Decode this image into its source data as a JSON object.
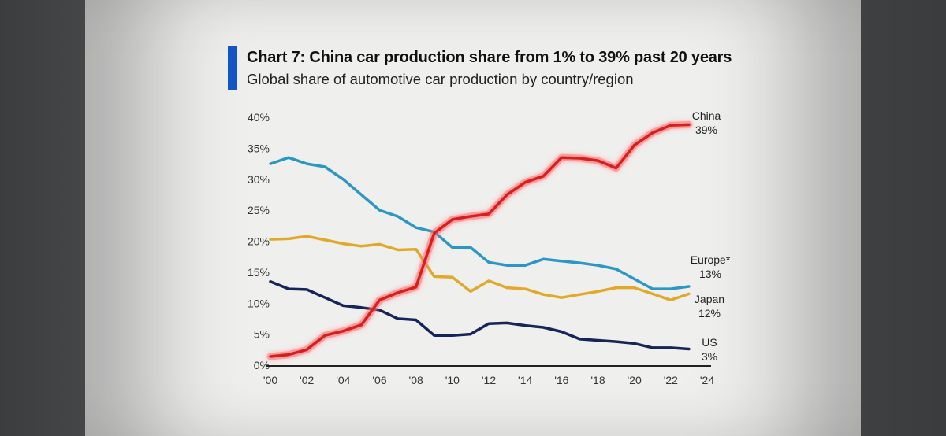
{
  "header": {
    "title": "Chart 7: China car production share from 1% to 39% past 20 years",
    "subtitle": "Global share of automotive car production by country/region",
    "accent_color": "#1355c4"
  },
  "chart_data": {
    "type": "line",
    "title": "Chart 7: China car production share from 1% to 39% past 20 years",
    "subtitle": "Global share of automotive car production by country/region",
    "xlabel": "",
    "ylabel": "",
    "x": [
      2000,
      2001,
      2002,
      2003,
      2004,
      2005,
      2006,
      2007,
      2008,
      2009,
      2010,
      2011,
      2012,
      2013,
      2014,
      2015,
      2016,
      2017,
      2018,
      2019,
      2020,
      2021,
      2022,
      2023
    ],
    "xlim": [
      2000,
      2024
    ],
    "ylim": [
      0,
      40
    ],
    "x_ticks": [
      "'00",
      "'02",
      "'04",
      "'06",
      "'08",
      "'10",
      "'12",
      "'14",
      "'16",
      "'18",
      "'20",
      "'22",
      "'24"
    ],
    "x_tick_values": [
      2000,
      2002,
      2004,
      2006,
      2008,
      2010,
      2012,
      2014,
      2016,
      2018,
      2020,
      2022,
      2024
    ],
    "y_ticks": [
      "0%",
      "5%",
      "10%",
      "15%",
      "20%",
      "25%",
      "30%",
      "35%",
      "40%"
    ],
    "y_tick_values": [
      0,
      5,
      10,
      15,
      20,
      25,
      30,
      35,
      40
    ],
    "grid": false,
    "legend": "direct end-of-line labels, right",
    "series": [
      {
        "name": "China",
        "end_label": "39%",
        "color": "#d61f1f",
        "glow": true,
        "values": [
          1.4,
          1.7,
          2.5,
          4.8,
          5.5,
          6.5,
          10.5,
          11.7,
          12.6,
          21.3,
          23.5,
          24.0,
          24.4,
          27.5,
          29.5,
          30.5,
          33.5,
          33.4,
          33.0,
          31.8,
          35.5,
          37.5,
          38.7,
          38.8
        ]
      },
      {
        "name": "Europe*",
        "end_label": "13%",
        "color": "#2b97c4",
        "glow": false,
        "values": [
          32.5,
          33.5,
          32.5,
          32.0,
          30.0,
          27.5,
          25.0,
          24.0,
          22.2,
          21.5,
          19.0,
          19.0,
          16.6,
          16.1,
          16.1,
          17.1,
          16.8,
          16.5,
          16.1,
          15.5,
          13.9,
          12.3,
          12.3,
          12.7
        ]
      },
      {
        "name": "Japan",
        "end_label": "12%",
        "color": "#e0a92a",
        "glow": false,
        "values": [
          20.3,
          20.4,
          20.8,
          20.2,
          19.6,
          19.2,
          19.5,
          18.6,
          18.7,
          14.3,
          14.2,
          11.9,
          13.6,
          12.5,
          12.3,
          11.4,
          10.9,
          11.4,
          11.9,
          12.5,
          12.5,
          11.5,
          10.5,
          11.5
        ]
      },
      {
        "name": "US",
        "end_label": "3%",
        "color": "#15255a",
        "glow": false,
        "values": [
          13.5,
          12.3,
          12.2,
          10.9,
          9.6,
          9.3,
          8.9,
          7.5,
          7.3,
          4.8,
          4.8,
          5.0,
          6.7,
          6.8,
          6.4,
          6.1,
          5.4,
          4.2,
          4.0,
          3.8,
          3.5,
          2.8,
          2.8,
          2.6
        ]
      }
    ]
  }
}
